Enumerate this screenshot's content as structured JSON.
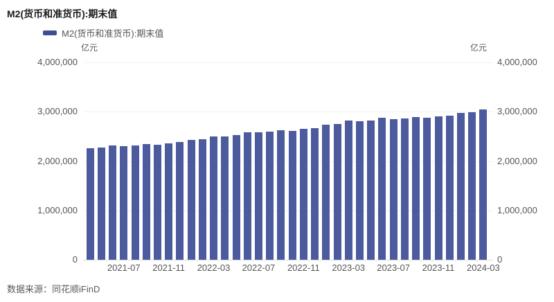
{
  "header": {
    "title": "M2(货币和准货币):期末值"
  },
  "legend": {
    "label": "M2(货币和准货币):期末值",
    "swatch_color": "#3F4E92"
  },
  "axes": {
    "unit_label_left": "亿元",
    "unit_label_right": "亿元"
  },
  "footer": {
    "source": "数据来源：同花顺iFinD"
  },
  "colors": {
    "bar": "#4C5A9E",
    "legend_swatch": "#3F4E92",
    "gridline": "#F0F0F0",
    "axis_line": "#D9D9D9",
    "tick_text": "#545454",
    "title_text": "#1A1A1A"
  },
  "chart_data": {
    "type": "bar",
    "title": "M2(货币和准货币):期末值",
    "xlabel": "",
    "ylabel": "亿元",
    "ylim": [
      0,
      4000000
    ],
    "grid": true,
    "legend_position": "top-left",
    "categories": [
      "2021-04",
      "2021-05",
      "2021-06",
      "2021-07",
      "2021-08",
      "2021-09",
      "2021-10",
      "2021-11",
      "2021-12",
      "2022-01",
      "2022-02",
      "2022-03",
      "2022-04",
      "2022-05",
      "2022-06",
      "2022-07",
      "2022-08",
      "2022-09",
      "2022-10",
      "2022-11",
      "2022-12",
      "2023-01",
      "2023-02",
      "2023-03",
      "2023-04",
      "2023-05",
      "2023-06",
      "2023-07",
      "2023-08",
      "2023-09",
      "2023-10",
      "2023-11",
      "2023-12",
      "2024-01",
      "2024-02",
      "2024-03"
    ],
    "values": [
      2262100,
      2275500,
      2317800,
      2302200,
      2312300,
      2342800,
      2336200,
      2356000,
      2382900,
      2431000,
      2441500,
      2497700,
      2499700,
      2527000,
      2581500,
      2578100,
      2595100,
      2626600,
      2612900,
      2647000,
      2664300,
      2738100,
      2755200,
      2814600,
      2808500,
      2820500,
      2873000,
      2854000,
      2869300,
      2896700,
      2882300,
      2912000,
      2922700,
      2976300,
      2995600,
      3048000
    ],
    "y_ticks": [
      0,
      1000000,
      2000000,
      3000000,
      4000000
    ],
    "y_tick_labels": [
      "0",
      "1,000,000",
      "2,000,000",
      "3,000,000",
      "4,000,000"
    ],
    "x_tick_indices": [
      3,
      7,
      11,
      15,
      19,
      23,
      27,
      31,
      35
    ],
    "x_tick_labels": [
      "2021-07",
      "2021-11",
      "2022-03",
      "2022-07",
      "2022-11",
      "2023-03",
      "2023-07",
      "2023-11",
      "2024-03"
    ]
  }
}
